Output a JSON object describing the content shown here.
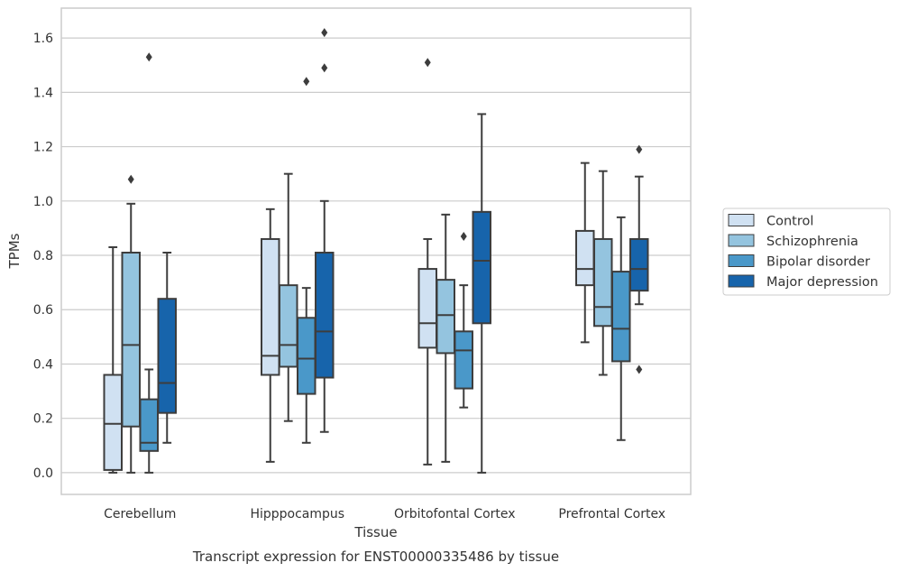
{
  "chart_data": {
    "type": "box",
    "title": "Transcript expression for ENST00000335486 by tissue",
    "xlabel": "Tissue",
    "ylabel": "TPMs",
    "ylim": [
      -0.08,
      1.71
    ],
    "yticks": [
      0.0,
      0.2,
      0.4,
      0.6,
      0.8,
      1.0,
      1.2,
      1.4,
      1.6
    ],
    "grid": true,
    "legend_position": "right",
    "categories": [
      "Cerebellum",
      "Hipppocampus",
      "Orbitofontal Cortex",
      "Prefrontal Cortex"
    ],
    "series": [
      {
        "name": "Control",
        "color": "#d0e1f2",
        "boxes": [
          {
            "whislo": 0.0,
            "q1": 0.01,
            "med": 0.18,
            "q3": 0.36,
            "whishi": 0.83,
            "fliers": []
          },
          {
            "whislo": 0.04,
            "q1": 0.36,
            "med": 0.43,
            "q3": 0.86,
            "whishi": 0.97,
            "fliers": []
          },
          {
            "whislo": 0.03,
            "q1": 0.46,
            "med": 0.55,
            "q3": 0.75,
            "whishi": 0.86,
            "fliers": [
              1.51
            ]
          },
          {
            "whislo": 0.48,
            "q1": 0.69,
            "med": 0.75,
            "q3": 0.89,
            "whishi": 1.14,
            "fliers": []
          }
        ]
      },
      {
        "name": "Schizophrenia",
        "color": "#94c4df",
        "boxes": [
          {
            "whislo": 0.0,
            "q1": 0.17,
            "med": 0.47,
            "q3": 0.81,
            "whishi": 0.99,
            "fliers": [
              1.08
            ]
          },
          {
            "whislo": 0.19,
            "q1": 0.39,
            "med": 0.47,
            "q3": 0.69,
            "whishi": 1.1,
            "fliers": []
          },
          {
            "whislo": 0.04,
            "q1": 0.44,
            "med": 0.58,
            "q3": 0.71,
            "whishi": 0.95,
            "fliers": []
          },
          {
            "whislo": 0.36,
            "q1": 0.54,
            "med": 0.61,
            "q3": 0.86,
            "whishi": 1.11,
            "fliers": []
          }
        ]
      },
      {
        "name": "Bipolar disorder",
        "color": "#4a98c9",
        "boxes": [
          {
            "whislo": 0.0,
            "q1": 0.08,
            "med": 0.11,
            "q3": 0.27,
            "whishi": 0.38,
            "fliers": [
              1.53
            ]
          },
          {
            "whislo": 0.11,
            "q1": 0.29,
            "med": 0.42,
            "q3": 0.57,
            "whishi": 0.68,
            "fliers": [
              1.44
            ]
          },
          {
            "whislo": 0.24,
            "q1": 0.31,
            "med": 0.45,
            "q3": 0.52,
            "whishi": 0.69,
            "fliers": [
              0.87
            ]
          },
          {
            "whislo": 0.12,
            "q1": 0.41,
            "med": 0.53,
            "q3": 0.74,
            "whishi": 0.94,
            "fliers": []
          }
        ]
      },
      {
        "name": "Major depression",
        "color": "#1764ab",
        "boxes": [
          {
            "whislo": 0.11,
            "q1": 0.22,
            "med": 0.33,
            "q3": 0.64,
            "whishi": 0.81,
            "fliers": []
          },
          {
            "whislo": 0.15,
            "q1": 0.35,
            "med": 0.52,
            "q3": 0.81,
            "whishi": 1.0,
            "fliers": [
              1.49,
              1.62
            ]
          },
          {
            "whislo": 0.0,
            "q1": 0.55,
            "med": 0.78,
            "q3": 0.96,
            "whishi": 1.32,
            "fliers": []
          },
          {
            "whislo": 0.62,
            "q1": 0.67,
            "med": 0.75,
            "q3": 0.86,
            "whishi": 1.09,
            "fliers": [
              0.38,
              1.19
            ]
          }
        ]
      }
    ]
  }
}
